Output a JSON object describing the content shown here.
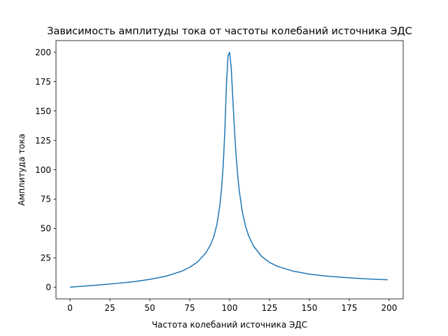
{
  "chart_data": {
    "type": "line",
    "title": "Зависимость амплитуды тока от частоты колебаний источника ЭДС",
    "xlabel": "Частота колебаний источника ЭДС",
    "ylabel": "Амплитуда тока",
    "xlim": [
      -8.8,
      208.8
    ],
    "ylim": [
      -10,
      210
    ],
    "xticks": [
      0,
      25,
      50,
      75,
      100,
      125,
      150,
      175,
      200
    ],
    "yticks": [
      0,
      25,
      50,
      75,
      100,
      125,
      150,
      175,
      200
    ],
    "grid": false,
    "legend": "none",
    "series": [
      {
        "color": "#1f77b4",
        "x": [
          0,
          10,
          20,
          30,
          40,
          50,
          60,
          70,
          75,
          80,
          85,
          88,
          90,
          92,
          94,
          95,
          96,
          97,
          98,
          99,
          100,
          101,
          102,
          103,
          104,
          105,
          106,
          108,
          110,
          112,
          115,
          120,
          125,
          130,
          140,
          150,
          160,
          170,
          180,
          190,
          199
        ],
        "y": [
          0,
          1.0,
          2.1,
          3.3,
          4.7,
          6.6,
          9.3,
          13.6,
          16.9,
          21.6,
          29.0,
          35.9,
          42.6,
          53.0,
          70.7,
          84.5,
          104.0,
          132.5,
          171.3,
          197.0,
          200.0,
          187.0,
          161.0,
          135.6,
          113.5,
          96.2,
          82.7,
          64.0,
          51.8,
          43.5,
          35.0,
          26.3,
          21.1,
          17.7,
          13.6,
          11.1,
          9.5,
          8.4,
          7.5,
          6.8,
          6.3
        ]
      }
    ]
  }
}
